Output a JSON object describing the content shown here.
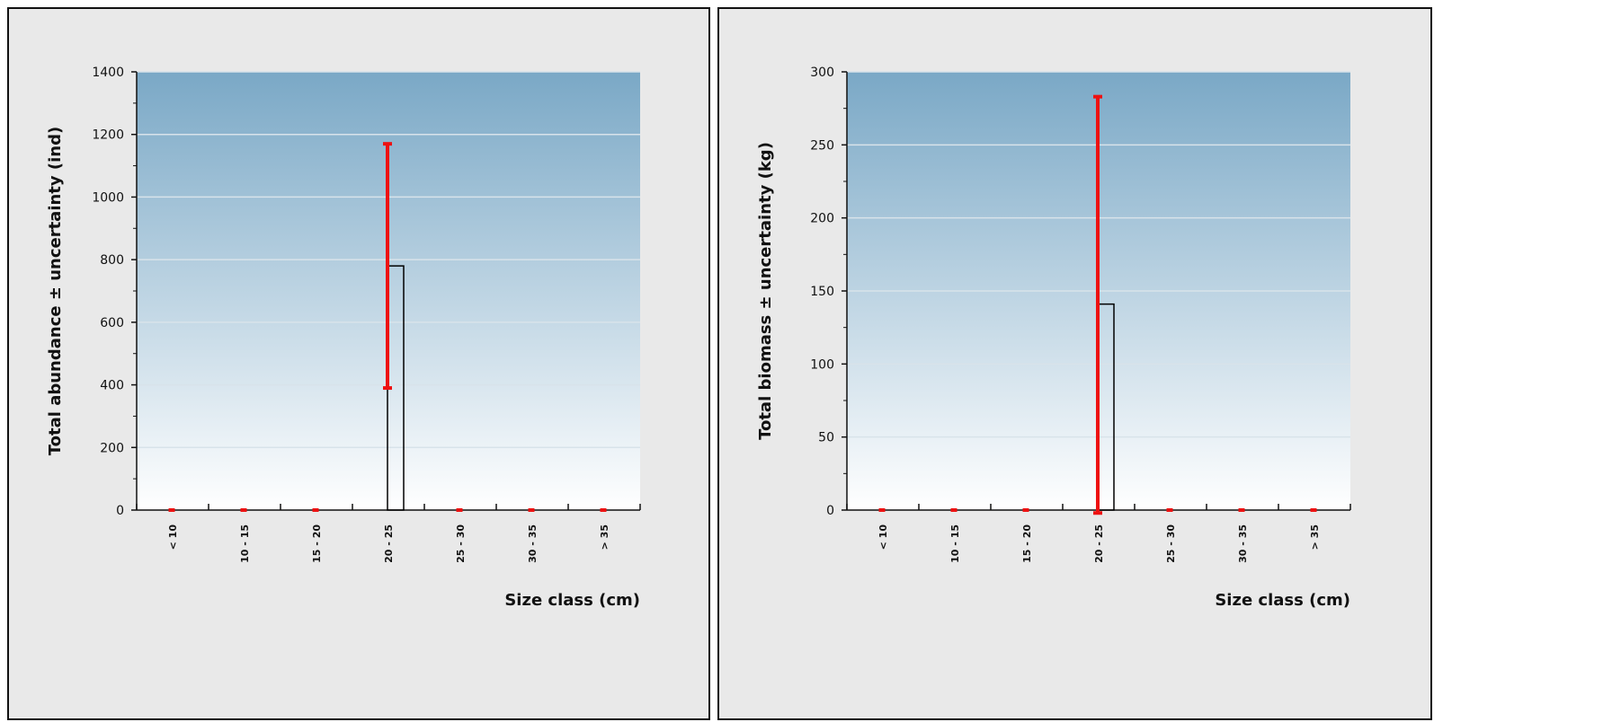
{
  "chart_data": [
    {
      "type": "bar",
      "title": "",
      "xlabel": "Size class (cm)",
      "ylabel": "Total abundance ± uncertainty (ind)",
      "categories": [
        "< 10",
        "10 - 15",
        "15 - 20",
        "20 - 25",
        "25 - 30",
        "30 - 35",
        "> 35"
      ],
      "values": [
        0,
        0,
        0,
        780,
        0,
        0,
        0
      ],
      "error_low": [
        0,
        0,
        0,
        390,
        0,
        0,
        0
      ],
      "error_high": [
        0,
        0,
        0,
        1170,
        0,
        0,
        0
      ],
      "ylim": [
        0,
        1400
      ],
      "yticks": [
        0,
        200,
        400,
        600,
        800,
        1000,
        1200,
        1400
      ],
      "grid": true,
      "colors": {
        "bar_edge": "#000000",
        "bar_fill": "#ffffff",
        "error": "#ee1111",
        "plot_top": "#7aa8c6",
        "plot_bottom": "#ffffff"
      }
    },
    {
      "type": "bar",
      "title": "",
      "xlabel": "Size class (cm)",
      "ylabel": "Total biomass ± uncertainty (kg)",
      "categories": [
        "< 10",
        "10 - 15",
        "15 - 20",
        "20 - 25",
        "25 - 30",
        "30 - 35",
        "> 35"
      ],
      "values": [
        0,
        0,
        0,
        141,
        0,
        0,
        0
      ],
      "error_low": [
        0,
        0,
        0,
        -2,
        0,
        0,
        0
      ],
      "error_high": [
        0,
        0,
        0,
        283,
        0,
        0,
        0
      ],
      "ylim": [
        0,
        300
      ],
      "yticks": [
        0,
        50,
        100,
        150,
        200,
        250,
        300
      ],
      "grid": true,
      "colors": {
        "bar_edge": "#000000",
        "bar_fill": "#ffffff",
        "error": "#ee1111",
        "plot_top": "#7aa8c6",
        "plot_bottom": "#ffffff"
      }
    }
  ]
}
